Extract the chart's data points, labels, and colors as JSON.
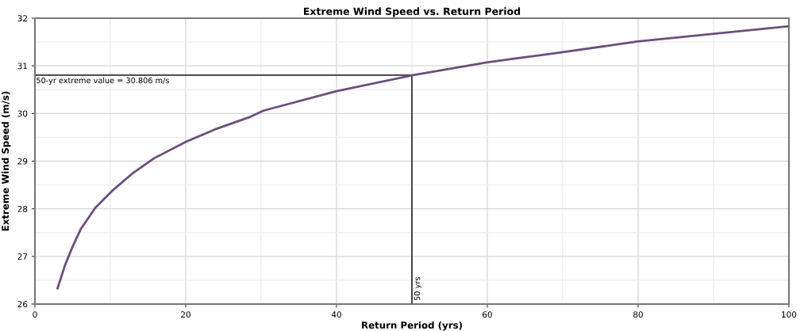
{
  "chart_data": {
    "type": "line",
    "title": "Extreme Wind Speed vs. Return Period",
    "xlabel": "Return Period (yrs)",
    "ylabel": "Extreme Wind Speed (m/s)",
    "x": [
      3,
      4,
      4.9,
      6.1,
      8,
      10.2,
      13,
      15.8,
      20.1,
      24.1,
      28.4,
      30.3,
      40,
      50,
      59.9,
      63.5,
      68.7,
      79.9,
      100
    ],
    "series": [
      {
        "color": "#6a4f7a",
        "values": [
          26.33,
          26.82,
          27.17,
          27.58,
          28.02,
          28.37,
          28.75,
          29.06,
          29.41,
          29.68,
          29.92,
          30.06,
          30.47,
          30.8,
          31.07,
          31.15,
          31.26,
          31.51,
          31.83
        ]
      }
    ],
    "xlim": [
      0,
      100
    ],
    "xticks": [
      0,
      20,
      40,
      60,
      80,
      100
    ],
    "ylim": [
      26,
      32
    ],
    "yticks": [
      26,
      27,
      28,
      29,
      30,
      31,
      32
    ],
    "ref_lines": [
      {
        "axis": "y",
        "value": 30.806,
        "label": "50-yr extreme value = 30.806 m/s",
        "color": "#333333"
      },
      {
        "axis": "x",
        "value": 50,
        "label": "50 yrs",
        "color": "#111111"
      }
    ],
    "grid": true,
    "legend": false,
    "marker": "none",
    "line_style": "solid"
  }
}
